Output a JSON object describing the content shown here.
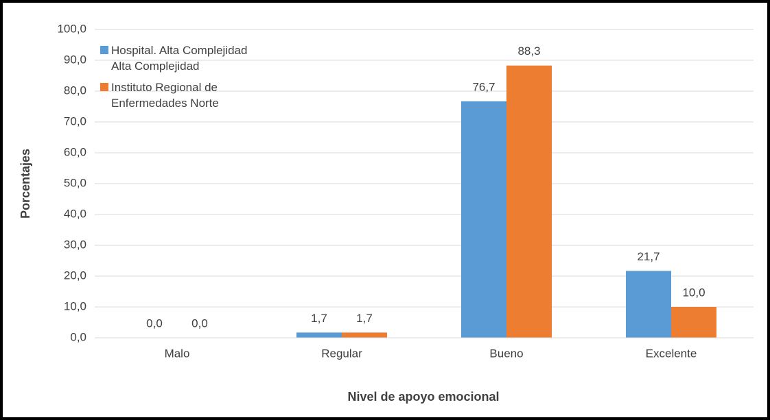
{
  "chart_data": {
    "type": "bar",
    "x_label": "Nivel de apoyo emocional",
    "y_label": "Porcentajes",
    "categories": [
      "Malo",
      "Regular",
      "Bueno",
      "Excelente"
    ],
    "series": [
      {
        "name": "Hospital. Alta Complejidad Alta Complejidad",
        "color": "#5b9bd5",
        "values": [
          0.0,
          1.7,
          76.7,
          21.7
        ],
        "value_labels": [
          "0,0",
          "1,7",
          "76,7",
          "21,7"
        ]
      },
      {
        "name": "Instituto Regional de Enfermedades Norte",
        "color": "#ed7d31",
        "values": [
          0.0,
          1.7,
          88.3,
          10.0
        ],
        "value_labels": [
          "0,0",
          "1,7",
          "88,3",
          "10,0"
        ]
      }
    ],
    "ylim": [
      0,
      100
    ],
    "yticks": [
      {
        "value": 0,
        "label": "0,0"
      },
      {
        "value": 10,
        "label": "10,0"
      },
      {
        "value": 20,
        "label": "20,0"
      },
      {
        "value": 30,
        "label": "30,0"
      },
      {
        "value": 40,
        "label": "40,0"
      },
      {
        "value": 50,
        "label": "50,0"
      },
      {
        "value": 60,
        "label": "60,0"
      },
      {
        "value": 70,
        "label": "70,0"
      },
      {
        "value": 80,
        "label": "80,0"
      },
      {
        "value": 90,
        "label": "90,0"
      },
      {
        "value": 100,
        "label": "100,0"
      }
    ],
    "grid": true,
    "legend": "top-left"
  }
}
